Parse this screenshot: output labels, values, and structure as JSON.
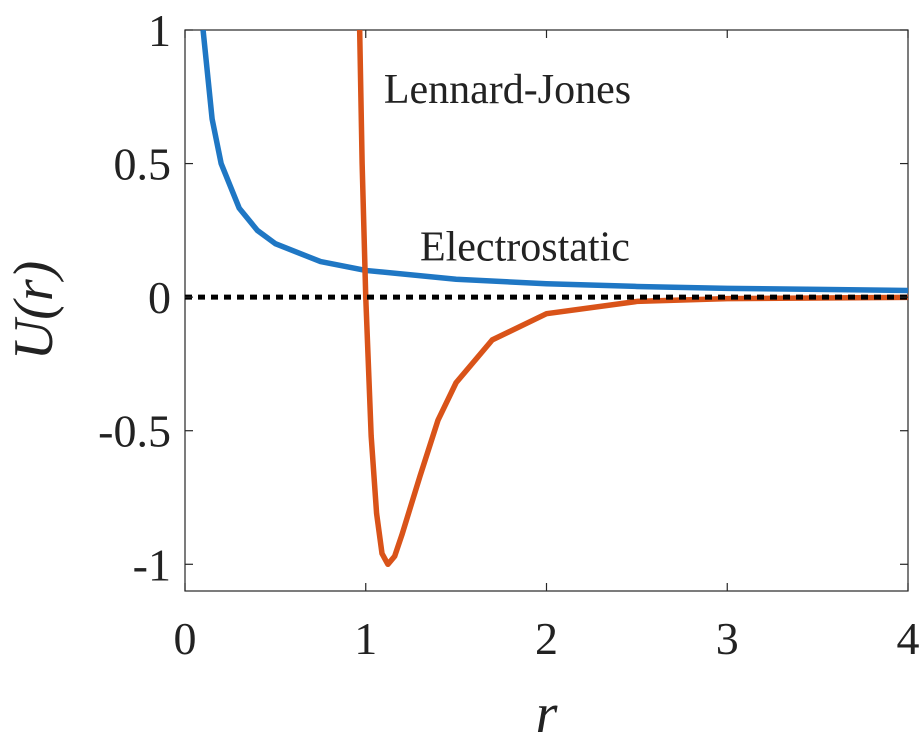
{
  "chart_data": {
    "type": "line",
    "xlabel": "r",
    "ylabel": "U(r)",
    "xlim": [
      0,
      4
    ],
    "ylim": [
      -1.1,
      1
    ],
    "x_ticks": [
      "0",
      "1",
      "2",
      "3",
      "4"
    ],
    "y_ticks": [
      "-1",
      "-0.5",
      "0",
      "0.5",
      "1"
    ],
    "grid": false,
    "series": [
      {
        "name": "Electrostatic",
        "color": "#1f77c4",
        "x": [
          0.1,
          0.15,
          0.2,
          0.3,
          0.4,
          0.5,
          0.75,
          1.0,
          1.5,
          2.0,
          2.5,
          3.0,
          3.5,
          4.0
        ],
        "y": [
          1.0,
          0.667,
          0.5,
          0.333,
          0.25,
          0.2,
          0.133,
          0.1,
          0.067,
          0.05,
          0.04,
          0.033,
          0.029,
          0.025
        ]
      },
      {
        "name": "Lennard-Jones",
        "color": "#d95319",
        "x": [
          0.965,
          0.98,
          1.0,
          1.03,
          1.06,
          1.09,
          1.1225,
          1.16,
          1.2,
          1.3,
          1.4,
          1.5,
          1.7,
          2.0,
          2.5,
          3.0,
          4.0
        ],
        "y": [
          1.05,
          0.5,
          0.0,
          -0.52,
          -0.81,
          -0.96,
          -1.0,
          -0.97,
          -0.89,
          -0.67,
          -0.46,
          -0.32,
          -0.16,
          -0.062,
          -0.016,
          -0.0055,
          -0.001
        ]
      },
      {
        "name": "zero",
        "color": "#000000",
        "x": [
          0,
          4
        ],
        "y": [
          0,
          0
        ]
      }
    ],
    "annotations": [
      {
        "text": "Lennard-Jones",
        "x": 1.1,
        "y": 0.78
      },
      {
        "text": "Electrostatic",
        "x": 1.3,
        "y": 0.19
      }
    ]
  }
}
